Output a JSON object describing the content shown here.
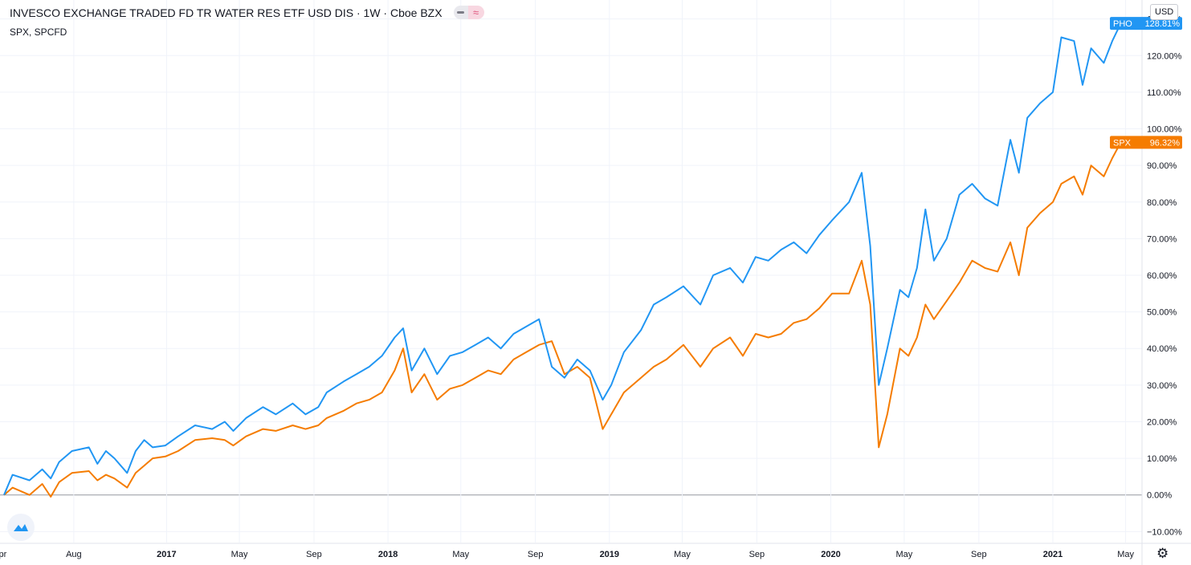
{
  "header": {
    "title": "INVESCO EXCHANGE TRADED FD TR WATER RES ETF USD DIS · 1W · Cboe BZX",
    "compare": "SPX, SPCFD",
    "currency": "USD"
  },
  "chart_data": {
    "type": "line",
    "x_unit": "date",
    "y_unit": "percent change",
    "ylim": [
      -13,
      133
    ],
    "xlim": [
      "2016-04-08",
      "2021-05-28"
    ],
    "grid": true,
    "y_ticks": [
      {
        "value": -10,
        "label": "−10.00%"
      },
      {
        "value": 0,
        "label": "0.00%"
      },
      {
        "value": 10,
        "label": "10.00%"
      },
      {
        "value": 20,
        "label": "20.00%"
      },
      {
        "value": 30,
        "label": "30.00%"
      },
      {
        "value": 40,
        "label": "40.00%"
      },
      {
        "value": 50,
        "label": "50.00%"
      },
      {
        "value": 60,
        "label": "60.00%"
      },
      {
        "value": 70,
        "label": "70.00%"
      },
      {
        "value": 80,
        "label": "80.00%"
      },
      {
        "value": 90,
        "label": "90.00%"
      },
      {
        "value": 100,
        "label": "100.00%"
      },
      {
        "value": 110,
        "label": "110.00%"
      },
      {
        "value": 120,
        "label": "120.00%"
      },
      {
        "value": 130,
        "label": "130.00%"
      }
    ],
    "x_ticks": [
      {
        "date": "2016-04-01",
        "label": "Apr",
        "bold": false
      },
      {
        "date": "2016-08-01",
        "label": "Aug",
        "bold": false
      },
      {
        "date": "2017-01-01",
        "label": "2017",
        "bold": true
      },
      {
        "date": "2017-05-01",
        "label": "May",
        "bold": false
      },
      {
        "date": "2017-09-01",
        "label": "Sep",
        "bold": false
      },
      {
        "date": "2018-01-01",
        "label": "2018",
        "bold": true
      },
      {
        "date": "2018-05-01",
        "label": "May",
        "bold": false
      },
      {
        "date": "2018-09-01",
        "label": "Sep",
        "bold": false
      },
      {
        "date": "2019-01-01",
        "label": "2019",
        "bold": true
      },
      {
        "date": "2019-05-01",
        "label": "May",
        "bold": false
      },
      {
        "date": "2019-09-01",
        "label": "Sep",
        "bold": false
      },
      {
        "date": "2020-01-01",
        "label": "2020",
        "bold": true
      },
      {
        "date": "2020-05-01",
        "label": "May",
        "bold": false
      },
      {
        "date": "2020-09-01",
        "label": "Sep",
        "bold": false
      },
      {
        "date": "2021-01-01",
        "label": "2021",
        "bold": true
      },
      {
        "date": "2021-05-01",
        "label": "May",
        "bold": false
      }
    ],
    "series": [
      {
        "name": "PHO",
        "color": "#2196f3",
        "last_label": "128.81%",
        "points": [
          [
            "2016-04-08",
            0
          ],
          [
            "2016-04-22",
            5.5
          ],
          [
            "2016-05-20",
            4
          ],
          [
            "2016-06-10",
            7
          ],
          [
            "2016-06-24",
            4.5
          ],
          [
            "2016-07-08",
            9
          ],
          [
            "2016-07-29",
            12
          ],
          [
            "2016-08-26",
            13
          ],
          [
            "2016-09-09",
            8.5
          ],
          [
            "2016-09-23",
            12
          ],
          [
            "2016-10-07",
            10
          ],
          [
            "2016-10-28",
            6
          ],
          [
            "2016-11-11",
            12
          ],
          [
            "2016-11-25",
            15
          ],
          [
            "2016-12-09",
            13
          ],
          [
            "2016-12-30",
            13.5
          ],
          [
            "2017-01-20",
            16
          ],
          [
            "2017-02-17",
            19
          ],
          [
            "2017-03-17",
            18
          ],
          [
            "2017-04-07",
            20
          ],
          [
            "2017-04-21",
            17.5
          ],
          [
            "2017-05-12",
            21
          ],
          [
            "2017-06-09",
            24
          ],
          [
            "2017-06-30",
            22
          ],
          [
            "2017-07-28",
            25
          ],
          [
            "2017-08-18",
            22
          ],
          [
            "2017-09-08",
            24
          ],
          [
            "2017-09-22",
            28
          ],
          [
            "2017-10-20",
            31
          ],
          [
            "2017-11-10",
            33
          ],
          [
            "2017-12-01",
            35
          ],
          [
            "2017-12-22",
            38
          ],
          [
            "2018-01-12",
            43
          ],
          [
            "2018-01-26",
            45.5
          ],
          [
            "2018-02-09",
            34
          ],
          [
            "2018-03-02",
            40
          ],
          [
            "2018-03-23",
            33
          ],
          [
            "2018-04-13",
            38
          ],
          [
            "2018-05-04",
            39
          ],
          [
            "2018-05-25",
            41
          ],
          [
            "2018-06-15",
            43
          ],
          [
            "2018-07-06",
            40
          ],
          [
            "2018-07-27",
            44
          ],
          [
            "2018-08-17",
            46
          ],
          [
            "2018-09-07",
            48
          ],
          [
            "2018-09-28",
            35
          ],
          [
            "2018-10-19",
            32
          ],
          [
            "2018-11-09",
            37
          ],
          [
            "2018-11-30",
            34
          ],
          [
            "2018-12-21",
            26
          ],
          [
            "2019-01-04",
            30
          ],
          [
            "2019-01-25",
            39
          ],
          [
            "2019-02-22",
            45
          ],
          [
            "2019-03-15",
            52
          ],
          [
            "2019-04-05",
            54
          ],
          [
            "2019-05-03",
            57
          ],
          [
            "2019-05-31",
            52
          ],
          [
            "2019-06-21",
            60
          ],
          [
            "2019-07-19",
            62
          ],
          [
            "2019-08-09",
            58
          ],
          [
            "2019-08-30",
            65
          ],
          [
            "2019-09-20",
            64
          ],
          [
            "2019-10-11",
            67
          ],
          [
            "2019-11-01",
            69
          ],
          [
            "2019-11-22",
            66
          ],
          [
            "2019-12-13",
            71
          ],
          [
            "2020-01-03",
            75
          ],
          [
            "2020-01-31",
            80
          ],
          [
            "2020-02-21",
            88
          ],
          [
            "2020-03-06",
            68
          ],
          [
            "2020-03-20",
            30
          ],
          [
            "2020-04-03",
            40
          ],
          [
            "2020-04-24",
            56
          ],
          [
            "2020-05-08",
            54
          ],
          [
            "2020-05-22",
            62
          ],
          [
            "2020-06-05",
            78
          ],
          [
            "2020-06-19",
            64
          ],
          [
            "2020-07-10",
            70
          ],
          [
            "2020-07-31",
            82
          ],
          [
            "2020-08-21",
            85
          ],
          [
            "2020-09-11",
            81
          ],
          [
            "2020-10-02",
            79
          ],
          [
            "2020-10-23",
            97
          ],
          [
            "2020-11-06",
            88
          ],
          [
            "2020-11-20",
            103
          ],
          [
            "2020-12-11",
            107
          ],
          [
            "2021-01-01",
            110
          ],
          [
            "2021-01-15",
            125
          ],
          [
            "2021-02-05",
            124
          ],
          [
            "2021-02-19",
            112
          ],
          [
            "2021-03-05",
            122
          ],
          [
            "2021-03-26",
            118
          ],
          [
            "2021-04-09",
            124
          ],
          [
            "2021-04-23",
            128.81
          ]
        ]
      },
      {
        "name": "SPX",
        "color": "#f57c00",
        "last_label": "96.32%",
        "points": [
          [
            "2016-04-08",
            0
          ],
          [
            "2016-04-22",
            2
          ],
          [
            "2016-05-20",
            0
          ],
          [
            "2016-06-10",
            3
          ],
          [
            "2016-06-24",
            -0.5
          ],
          [
            "2016-07-08",
            3.5
          ],
          [
            "2016-07-29",
            6
          ],
          [
            "2016-08-26",
            6.5
          ],
          [
            "2016-09-09",
            4
          ],
          [
            "2016-09-23",
            5.5
          ],
          [
            "2016-10-07",
            4.5
          ],
          [
            "2016-10-28",
            2
          ],
          [
            "2016-11-11",
            6
          ],
          [
            "2016-11-25",
            8
          ],
          [
            "2016-12-09",
            10
          ],
          [
            "2016-12-30",
            10.5
          ],
          [
            "2017-01-20",
            12
          ],
          [
            "2017-02-17",
            15
          ],
          [
            "2017-03-17",
            15.5
          ],
          [
            "2017-04-07",
            15
          ],
          [
            "2017-04-21",
            13.5
          ],
          [
            "2017-05-12",
            16
          ],
          [
            "2017-06-09",
            18
          ],
          [
            "2017-06-30",
            17.5
          ],
          [
            "2017-07-28",
            19
          ],
          [
            "2017-08-18",
            18
          ],
          [
            "2017-09-08",
            19
          ],
          [
            "2017-09-22",
            21
          ],
          [
            "2017-10-20",
            23
          ],
          [
            "2017-11-10",
            25
          ],
          [
            "2017-12-01",
            26
          ],
          [
            "2017-12-22",
            28
          ],
          [
            "2018-01-12",
            34
          ],
          [
            "2018-01-26",
            40
          ],
          [
            "2018-02-09",
            28
          ],
          [
            "2018-03-02",
            33
          ],
          [
            "2018-03-23",
            26
          ],
          [
            "2018-04-13",
            29
          ],
          [
            "2018-05-04",
            30
          ],
          [
            "2018-05-25",
            32
          ],
          [
            "2018-06-15",
            34
          ],
          [
            "2018-07-06",
            33
          ],
          [
            "2018-07-27",
            37
          ],
          [
            "2018-08-17",
            39
          ],
          [
            "2018-09-07",
            41
          ],
          [
            "2018-09-28",
            42
          ],
          [
            "2018-10-19",
            33
          ],
          [
            "2018-11-09",
            35
          ],
          [
            "2018-11-30",
            32
          ],
          [
            "2018-12-21",
            18
          ],
          [
            "2019-01-04",
            22
          ],
          [
            "2019-01-25",
            28
          ],
          [
            "2019-02-22",
            32
          ],
          [
            "2019-03-15",
            35
          ],
          [
            "2019-04-05",
            37
          ],
          [
            "2019-05-03",
            41
          ],
          [
            "2019-05-31",
            35
          ],
          [
            "2019-06-21",
            40
          ],
          [
            "2019-07-19",
            43
          ],
          [
            "2019-08-09",
            38
          ],
          [
            "2019-08-30",
            44
          ],
          [
            "2019-09-20",
            43
          ],
          [
            "2019-10-11",
            44
          ],
          [
            "2019-11-01",
            47
          ],
          [
            "2019-11-22",
            48
          ],
          [
            "2019-12-13",
            51
          ],
          [
            "2020-01-03",
            55
          ],
          [
            "2020-01-31",
            55
          ],
          [
            "2020-02-21",
            64
          ],
          [
            "2020-03-06",
            52
          ],
          [
            "2020-03-20",
            13
          ],
          [
            "2020-04-03",
            22
          ],
          [
            "2020-04-24",
            40
          ],
          [
            "2020-05-08",
            38
          ],
          [
            "2020-05-22",
            43
          ],
          [
            "2020-06-05",
            52
          ],
          [
            "2020-06-19",
            48
          ],
          [
            "2020-07-10",
            53
          ],
          [
            "2020-07-31",
            58
          ],
          [
            "2020-08-21",
            64
          ],
          [
            "2020-09-11",
            62
          ],
          [
            "2020-10-02",
            61
          ],
          [
            "2020-10-23",
            69
          ],
          [
            "2020-11-06",
            60
          ],
          [
            "2020-11-20",
            73
          ],
          [
            "2020-12-11",
            77
          ],
          [
            "2021-01-01",
            80
          ],
          [
            "2021-01-15",
            85
          ],
          [
            "2021-02-05",
            87
          ],
          [
            "2021-02-19",
            82
          ],
          [
            "2021-03-05",
            90
          ],
          [
            "2021-03-26",
            87
          ],
          [
            "2021-04-09",
            92
          ],
          [
            "2021-04-23",
            96.32
          ]
        ]
      }
    ]
  }
}
